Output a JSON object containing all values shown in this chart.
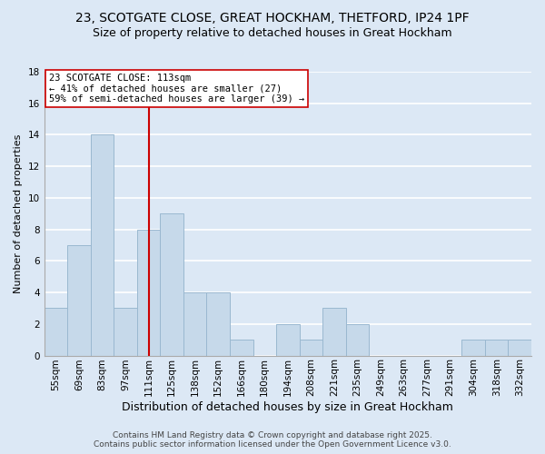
{
  "title1": "23, SCOTGATE CLOSE, GREAT HOCKHAM, THETFORD, IP24 1PF",
  "title2": "Size of property relative to detached houses in Great Hockham",
  "xlabel": "Distribution of detached houses by size in Great Hockham",
  "ylabel": "Number of detached properties",
  "bar_labels": [
    "55sqm",
    "69sqm",
    "83sqm",
    "97sqm",
    "111sqm",
    "125sqm",
    "138sqm",
    "152sqm",
    "166sqm",
    "180sqm",
    "194sqm",
    "208sqm",
    "221sqm",
    "235sqm",
    "249sqm",
    "263sqm",
    "277sqm",
    "291sqm",
    "304sqm",
    "318sqm",
    "332sqm"
  ],
  "bar_values": [
    3,
    7,
    14,
    3,
    8,
    9,
    4,
    4,
    1,
    0,
    2,
    1,
    3,
    2,
    0,
    0,
    0,
    0,
    1,
    1,
    1
  ],
  "bar_color": "#c6d9ea",
  "bar_edge_color": "#9ab8d0",
  "vline_x": 4,
  "vline_color": "#cc0000",
  "annotation_text": "23 SCOTGATE CLOSE: 113sqm\n← 41% of detached houses are smaller (27)\n59% of semi-detached houses are larger (39) →",
  "annotation_box_color": "#ffffff",
  "annotation_box_edge": "#cc0000",
  "annotation_fontsize": 7.5,
  "ylim": [
    0,
    18
  ],
  "yticks": [
    0,
    2,
    4,
    6,
    8,
    10,
    12,
    14,
    16,
    18
  ],
  "background_color": "#dce8f5",
  "grid_color": "#ffffff",
  "footer1": "Contains HM Land Registry data © Crown copyright and database right 2025.",
  "footer2": "Contains public sector information licensed under the Open Government Licence v3.0.",
  "title1_fontsize": 10,
  "title2_fontsize": 9,
  "xlabel_fontsize": 9,
  "ylabel_fontsize": 8,
  "tick_fontsize": 7.5,
  "footer_fontsize": 6.5
}
